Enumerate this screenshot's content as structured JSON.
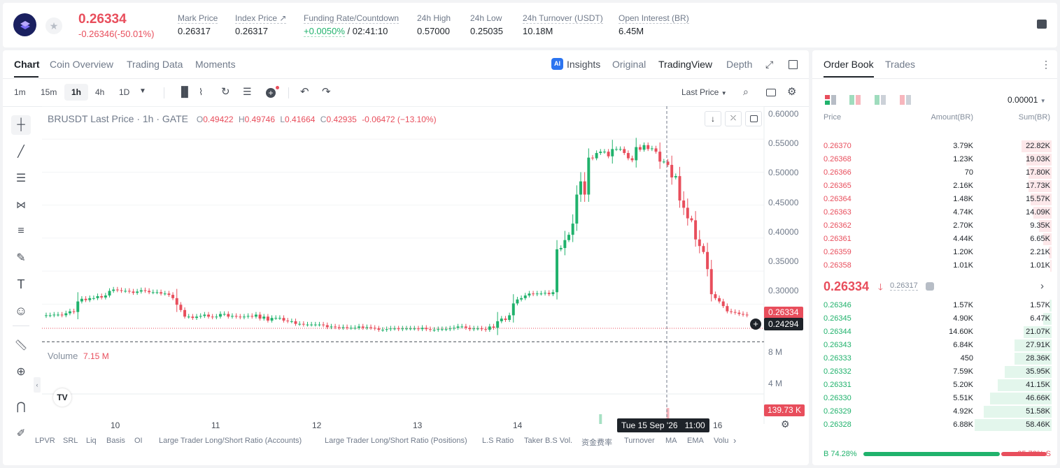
{
  "header": {
    "symbol_icon": "br-token-logo",
    "last_price": "0.26334",
    "change": "-0.26346(-50.01%)",
    "stats": [
      {
        "label": "Mark Price",
        "value": "0.26317"
      },
      {
        "label": "Index Price ↗",
        "value": "0.26317"
      },
      {
        "label": "Funding Rate/Countdown",
        "value_green": "+0.0050%",
        "value_rest": "/ 02:41:10"
      },
      {
        "label": "24h High",
        "value": "0.57000"
      },
      {
        "label": "24h Low",
        "value": "0.25035"
      },
      {
        "label": "24h Turnover (USDT)",
        "value": "10.18M"
      },
      {
        "label": "Open Interest (BR)",
        "value": "6.45M"
      }
    ]
  },
  "chart_tabs": [
    "Chart",
    "Coin Overview",
    "Trading Data",
    "Moments"
  ],
  "view_tabs": {
    "insights": "Insights",
    "original": "Original",
    "tradingview": "TradingView",
    "depth": "Depth"
  },
  "toolbar": {
    "intervals": [
      "1m",
      "15m",
      "1h",
      "4h",
      "1D"
    ],
    "active_interval": "1h",
    "price_type": "Last Price"
  },
  "legend": {
    "title": "BRUSDT Last Price · 1h · GATE",
    "o_label": "O",
    "o": "0.49422",
    "h_label": "H",
    "h": "0.49746",
    "l_label": "L",
    "l": "0.41664",
    "c_label": "C",
    "c": "0.42935",
    "change": "-0.06472 (−13.10%)"
  },
  "volume_legend": {
    "label": "Volume",
    "value": "7.15 M"
  },
  "price_axis": [
    "0.60000",
    "0.55000",
    "0.50000",
    "0.45000",
    "0.40000",
    "0.35000",
    "0.30000"
  ],
  "volume_axis": [
    "8 M",
    "4 M"
  ],
  "price_tags": {
    "last": "0.26334",
    "cursor": "0.24294",
    "volume": "139.73 K"
  },
  "time_axis": [
    "10",
    "11",
    "12",
    "13",
    "14",
    "16"
  ],
  "crosshair_time": "Tue 15 Sep '26   11:00",
  "indicators": [
    "LPVR",
    "SRL",
    "Liq",
    "Basis",
    "OI",
    "Large Trader Long/Short Ratio (Accounts)",
    "Large Trader Long/Short Ratio (Positions)",
    "L.S Ratio",
    "Taker B.S Vol.",
    "资金费率",
    "Turnover",
    "MA",
    "EMA",
    "Volu"
  ],
  "colors": {
    "up": "#20b26c",
    "down": "#e84e5c",
    "accent": "#1e2329"
  },
  "chart_data": {
    "type": "candlestick",
    "title": "BRUSDT Last Price · 1h · GATE",
    "ylim": [
      0.24,
      0.6
    ],
    "x_ticks": [
      "10",
      "11",
      "12",
      "13",
      "14",
      "16"
    ],
    "series": [
      {
        "name": "price",
        "values": [
          0.283,
          0.283,
          0.284,
          0.284,
          0.283,
          0.286,
          0.289,
          0.288,
          0.304,
          0.308,
          0.306,
          0.309,
          0.309,
          0.312,
          0.31,
          0.313,
          0.32,
          0.322,
          0.321,
          0.32,
          0.32,
          0.319,
          0.317,
          0.319,
          0.321,
          0.32,
          0.318,
          0.318,
          0.318,
          0.316,
          0.316,
          0.314,
          0.309,
          0.299,
          0.291,
          0.281,
          0.281,
          0.279,
          0.281,
          0.282,
          0.284,
          0.281,
          0.28,
          0.281,
          0.285,
          0.285,
          0.281,
          0.282,
          0.281,
          0.28,
          0.281,
          0.282,
          0.281,
          0.284,
          0.278,
          0.281,
          0.275,
          0.279,
          0.279,
          0.279,
          0.275,
          0.274,
          0.274,
          0.27,
          0.27,
          0.269,
          0.269,
          0.269,
          0.269,
          0.269,
          0.268,
          0.265,
          0.266,
          0.265,
          0.264,
          0.265,
          0.264,
          0.264,
          0.264,
          0.266,
          0.264,
          0.265,
          0.264,
          0.263,
          0.261,
          0.261,
          0.262,
          0.263,
          0.263,
          0.262,
          0.263,
          0.263,
          0.263,
          0.263,
          0.262,
          0.264,
          0.262,
          0.261,
          0.261,
          0.262,
          0.262,
          0.262,
          0.263,
          0.264,
          0.266,
          0.266,
          0.264,
          0.262,
          0.263,
          0.263,
          0.262,
          0.261,
          0.266,
          0.264,
          0.274,
          0.278,
          0.276,
          0.283,
          0.301,
          0.307,
          0.309,
          0.313,
          0.316,
          0.315,
          0.316,
          0.316,
          0.317,
          0.315,
          0.318,
          0.383,
          0.385,
          0.397,
          0.405,
          0.422,
          0.466,
          0.486,
          0.466,
          0.522,
          0.521,
          0.529,
          0.531,
          0.531,
          0.524,
          0.535,
          0.535,
          0.535,
          0.529,
          0.521,
          0.518,
          0.538,
          0.534,
          0.541,
          0.535,
          0.536,
          0.531,
          0.516,
          0.516,
          0.511,
          0.492,
          0.494,
          0.457,
          0.446,
          0.43,
          0.427,
          0.398,
          0.388,
          0.379,
          0.353,
          0.315,
          0.309,
          0.304,
          0.297,
          0.289,
          0.288,
          0.287,
          0.285,
          0.284,
          0.283
        ]
      },
      {
        "name": "volume",
        "values": [
          0.1,
          0.11,
          0.1,
          0.14,
          0.15,
          0.19,
          0.13,
          0.13,
          0.15,
          0.17,
          0.21,
          0.14,
          0.1,
          0.2,
          0.1,
          0.13,
          0.11,
          0.1,
          0.11,
          0.1,
          0.09,
          0.08,
          0.07,
          0.1,
          0.12,
          0.06,
          0.09,
          0.17,
          0.09,
          0.09,
          0.1,
          0.1,
          0.09,
          0.15,
          0.17,
          0.1,
          0.06,
          0.13,
          0.07,
          0.1,
          0.12,
          0.12,
          0.12,
          0.18,
          0.14,
          0.09,
          0.11,
          0.08,
          0.12,
          0.1,
          0.11,
          0.11,
          0.14,
          0.12,
          0.11,
          0.09,
          0.08,
          0.12,
          0.07,
          0.09,
          0.1,
          0.13,
          0.08,
          0.09,
          0.09,
          0.14,
          0.11,
          0.1,
          0.12,
          0.08,
          0.07,
          0.11,
          0.12,
          0.08,
          0.12,
          0.07,
          0.07,
          0.12,
          0.16,
          0.06,
          0.13,
          0.13,
          0.12,
          0.11,
          0.13,
          0.11,
          0.08,
          0.06,
          0.12,
          0.09,
          0.12,
          0.1,
          0.09,
          0.08,
          0.11,
          0.1,
          0.06,
          0.09,
          0.08,
          0.12,
          0.13,
          0.13,
          0.1,
          0.06,
          0.09,
          0.13,
          0.12,
          0.09,
          0.08,
          0.1,
          0.1,
          0.1,
          0.1,
          0.13,
          0.15,
          0.19,
          0.33,
          0.24,
          0.3,
          0.22,
          0.19,
          0.13,
          0.2,
          0.18,
          0.16,
          0.18,
          0.17,
          0.11,
          0.12,
          1.2,
          1.5,
          1.5,
          1.6,
          1.2,
          1.8,
          2.4,
          1.6,
          3.0,
          4.5,
          2.5,
          7.2,
          2.3,
          1.9,
          1.6,
          0.8,
          0.7,
          0.8,
          0.7,
          0.6,
          0.8,
          0.7,
          0.6,
          0.8,
          0.9,
          2.1,
          1.6,
          0.7,
          8.2,
          1.6,
          1.8,
          1.1,
          3.5,
          1.9,
          1.9,
          0.8,
          1.7,
          3.2,
          2.5,
          2.3,
          3.0,
          1.5,
          1.6,
          0.8,
          0.6,
          0.3,
          0.3,
          0.2,
          0.3,
          0.14
        ]
      }
    ]
  },
  "book": {
    "tabs": [
      "Order Book",
      "Trades"
    ],
    "precision": "0.00001",
    "headers": {
      "price": "Price",
      "amount": "Amount(BR)",
      "sum": "Sum(BR)"
    },
    "asks": [
      {
        "price": "0.26370",
        "amount": "3.79K",
        "sum": "22.82K",
        "depth": 0.39
      },
      {
        "price": "0.26368",
        "amount": "1.23K",
        "sum": "19.03K",
        "depth": 0.33
      },
      {
        "price": "0.26366",
        "amount": "70",
        "sum": "17.80K",
        "depth": 0.3
      },
      {
        "price": "0.26365",
        "amount": "2.16K",
        "sum": "17.73K",
        "depth": 0.3
      },
      {
        "price": "0.26364",
        "amount": "1.48K",
        "sum": "15.57K",
        "depth": 0.27
      },
      {
        "price": "0.26363",
        "amount": "4.74K",
        "sum": "14.09K",
        "depth": 0.24
      },
      {
        "price": "0.26362",
        "amount": "2.70K",
        "sum": "9.35K",
        "depth": 0.16
      },
      {
        "price": "0.26361",
        "amount": "4.44K",
        "sum": "6.65K",
        "depth": 0.11
      },
      {
        "price": "0.26359",
        "amount": "1.20K",
        "sum": "2.21K",
        "depth": 0.04
      },
      {
        "price": "0.26358",
        "amount": "1.01K",
        "sum": "1.01K",
        "depth": 0.02
      }
    ],
    "mid_price": "0.26334",
    "mid_mark": "0.26317",
    "bids": [
      {
        "price": "0.26346",
        "amount": "1.57K",
        "sum": "1.57K",
        "depth": 0.03
      },
      {
        "price": "0.26345",
        "amount": "4.90K",
        "sum": "6.47K",
        "depth": 0.11
      },
      {
        "price": "0.26344",
        "amount": "14.60K",
        "sum": "21.07K",
        "depth": 0.36
      },
      {
        "price": "0.26343",
        "amount": "6.84K",
        "sum": "27.91K",
        "depth": 0.48
      },
      {
        "price": "0.26333",
        "amount": "450",
        "sum": "28.36K",
        "depth": 0.48
      },
      {
        "price": "0.26332",
        "amount": "7.59K",
        "sum": "35.95K",
        "depth": 0.61
      },
      {
        "price": "0.26331",
        "amount": "5.20K",
        "sum": "41.15K",
        "depth": 0.7
      },
      {
        "price": "0.26330",
        "amount": "5.51K",
        "sum": "46.66K",
        "depth": 0.8
      },
      {
        "price": "0.26329",
        "amount": "4.92K",
        "sum": "51.58K",
        "depth": 0.88
      },
      {
        "price": "0.26328",
        "amount": "6.88K",
        "sum": "58.46K",
        "depth": 1.0
      }
    ],
    "ratio": {
      "buy": "B 74.28%",
      "sell": "25.72% S",
      "buy_fraction": 0.7428
    }
  }
}
